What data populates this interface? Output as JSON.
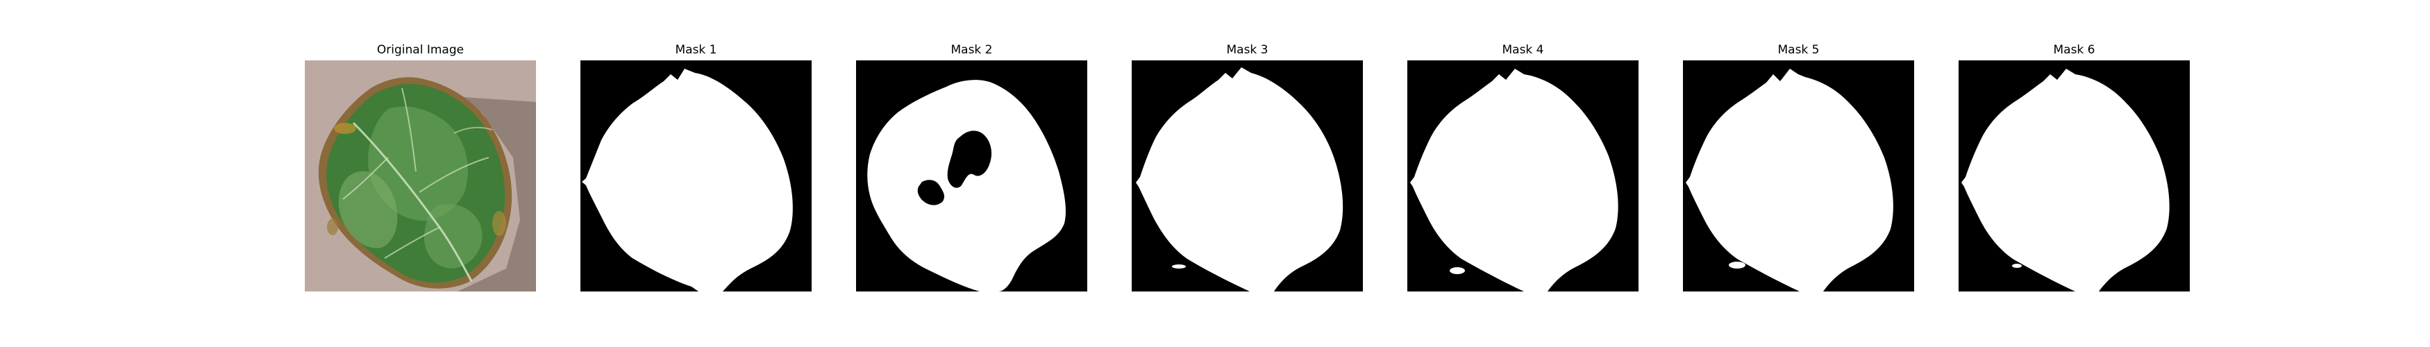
{
  "panels": [
    {
      "title": "Original Image",
      "kind": "photo"
    },
    {
      "title": "Mask 1",
      "kind": "mask"
    },
    {
      "title": "Mask 2",
      "kind": "mask-with-hole"
    },
    {
      "title": "Mask 3",
      "kind": "mask"
    },
    {
      "title": "Mask 4",
      "kind": "mask"
    },
    {
      "title": "Mask 5",
      "kind": "mask"
    },
    {
      "title": "Mask 6",
      "kind": "mask"
    }
  ],
  "colors": {
    "mask_background": "#000000",
    "mask_foreground": "#ffffff",
    "ground": "#b9a79e",
    "leaf_dark": "#2f6b2c",
    "leaf_mid": "#4f8a45",
    "leaf_light": "#7fae6a",
    "leaf_edge_brown": "#8a6a3a",
    "shadow": "#6f5f58"
  }
}
